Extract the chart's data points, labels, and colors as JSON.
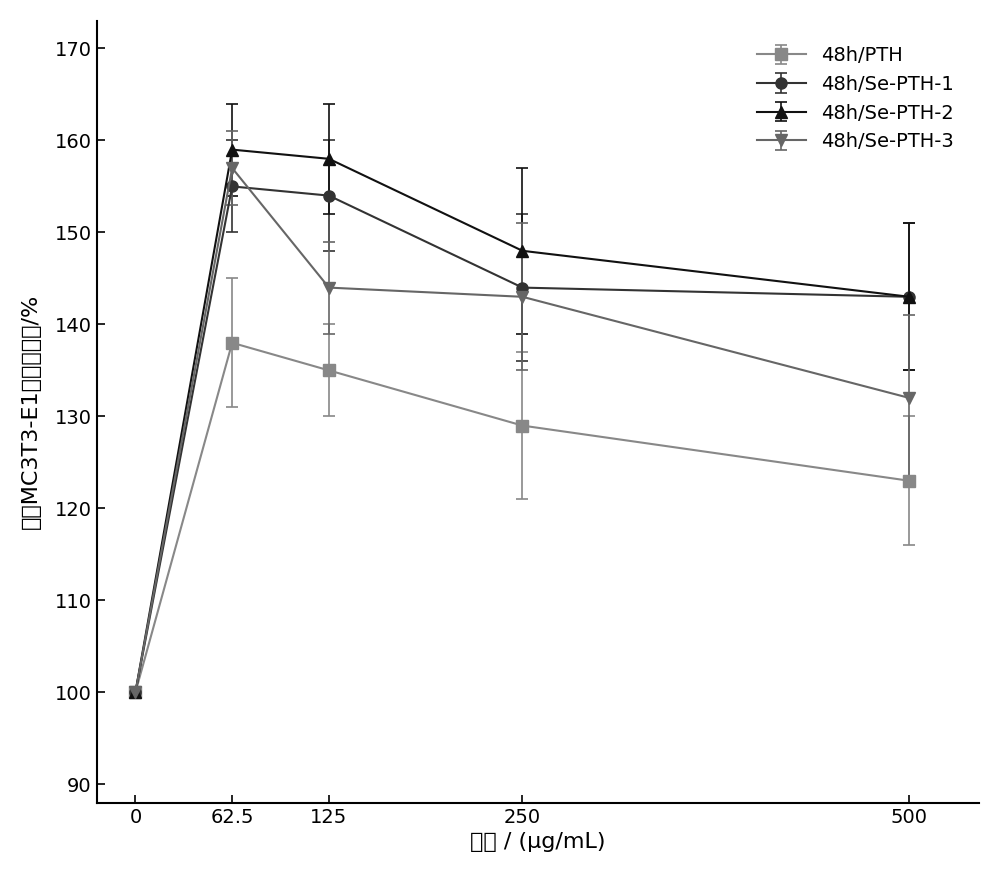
{
  "x": [
    0,
    62.5,
    125,
    250,
    500
  ],
  "series": {
    "48h/PTH": {
      "y": [
        100,
        138,
        135,
        129,
        123
      ],
      "yerr": [
        0,
        7,
        5,
        8,
        7
      ],
      "color": "#888888",
      "marker": "s",
      "markersize": 8
    },
    "48h/Se-PTH-1": {
      "y": [
        100,
        155,
        154,
        144,
        143
      ],
      "yerr": [
        0,
        5,
        6,
        8,
        8
      ],
      "color": "#333333",
      "marker": "o",
      "markersize": 8
    },
    "48h/Se-PTH-2": {
      "y": [
        100,
        159,
        158,
        148,
        143
      ],
      "yerr": [
        0,
        5,
        6,
        9,
        8
      ],
      "color": "#111111",
      "marker": "^",
      "markersize": 8
    },
    "48h/Se-PTH-3": {
      "y": [
        100,
        157,
        144,
        143,
        132
      ],
      "yerr": [
        0,
        4,
        5,
        8,
        9
      ],
      "color": "#666666",
      "marker": "v",
      "markersize": 8
    }
  },
  "xlabel": "浓度 / (μg/mL)",
  "ylabel": "小鼠MC3T3-E1细胞增殖率/%",
  "ylim": [
    88,
    173
  ],
  "yticks": [
    90,
    100,
    110,
    120,
    130,
    140,
    150,
    160,
    170
  ],
  "xticks": [
    0,
    62.5,
    125,
    250,
    500
  ],
  "xticklabels": [
    "0",
    "62.5",
    "125",
    "250",
    "500"
  ],
  "background_color": "#ffffff",
  "linewidth": 1.5,
  "capsize": 4,
  "elinewidth": 1.2
}
